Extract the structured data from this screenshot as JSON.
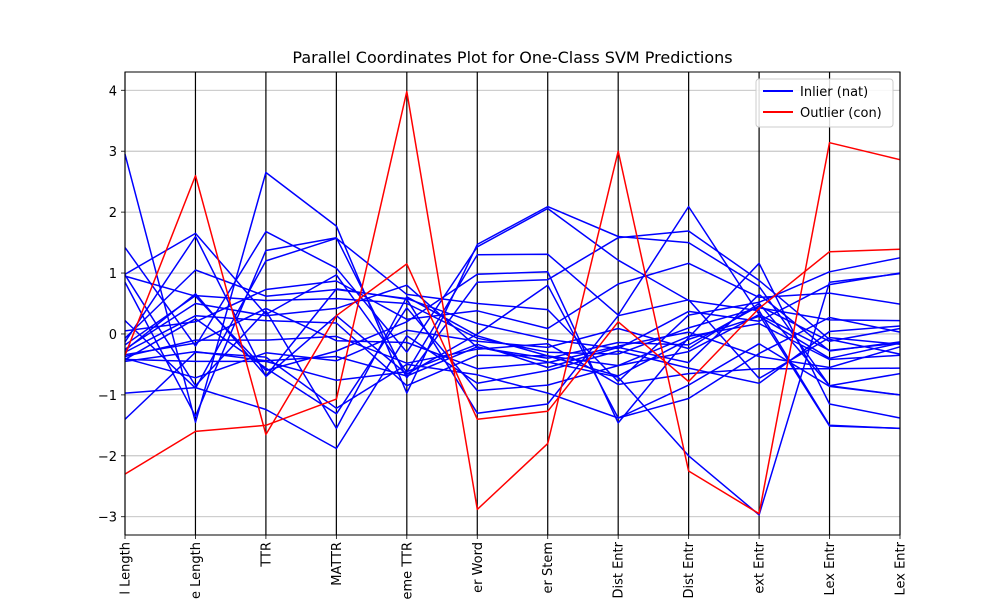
{
  "chart_data": {
    "type": "parallel_coordinates",
    "title": "Parallel Coordinates Plot for One-Class SVM Predictions",
    "axes": [
      "l Length",
      "e Length",
      "TTR",
      "MATTR",
      "eme TTR",
      "er Word",
      "er Stem",
      "Dist Entr",
      "Dist Entr",
      "ext Entr",
      "Lex Entr",
      "Lex Entr"
    ],
    "yticks": [
      "4",
      "3",
      "2",
      "1",
      "0",
      "−1",
      "−2",
      "−3"
    ],
    "ylim": [
      -3.3,
      4.3
    ],
    "grid": "horizontal",
    "legend_position": "top-right",
    "legend": [
      {
        "label": "Inlier (nat)",
        "color": "#0000ff"
      },
      {
        "label": "Outlier (con)",
        "color": "#ff0000"
      }
    ],
    "series": [
      {
        "class": "Outlier (con)",
        "color": "#ff0000",
        "values": [
          -0.35,
          2.6,
          -1.65,
          0.3,
          1.15,
          -1.4,
          -1.27,
          0.2,
          -0.78,
          0.42,
          1.35,
          1.39
        ]
      },
      {
        "class": "Outlier (con)",
        "color": "#ff0000",
        "values": [
          -2.3,
          -1.6,
          -1.5,
          -1.07,
          3.98,
          -2.88,
          -1.8,
          3.0,
          -2.25,
          -2.95,
          3.14,
          2.86
        ]
      },
      {
        "class": "Inlier (nat)",
        "color": "#0000ff",
        "values": [
          2.95,
          -1.45,
          2.65,
          1.77,
          -0.97,
          1.47,
          2.09,
          1.6,
          1.5,
          0.78,
          -0.85,
          -0.65
        ]
      },
      {
        "class": "Inlier (nat)",
        "color": "#0000ff",
        "values": [
          1.42,
          -0.2,
          1.68,
          1.08,
          -0.3,
          1.43,
          2.06,
          1.21,
          0.55,
          0.38,
          -1.5,
          -1.55
        ]
      },
      {
        "class": "Inlier (nat)",
        "color": "#0000ff",
        "values": [
          0.98,
          1.65,
          0.32,
          0.97,
          -0.63,
          1.3,
          1.31,
          0.31,
          2.09,
          0.32,
          -0.27,
          -0.15
        ]
      },
      {
        "class": "Inlier (nat)",
        "color": "#0000ff",
        "values": [
          0.95,
          0.62,
          -0.6,
          -0.28,
          0.2,
          0.98,
          1.02,
          -1.46,
          -0.06,
          1.16,
          -1.15,
          -1.38
        ]
      },
      {
        "class": "Inlier (nat)",
        "color": "#0000ff",
        "values": [
          0.85,
          -1.35,
          1.37,
          1.58,
          -0.72,
          0.85,
          0.89,
          1.58,
          1.69,
          0.88,
          -0.09,
          -0.33
        ]
      },
      {
        "class": "Inlier (nat)",
        "color": "#0000ff",
        "values": [
          0.22,
          -0.89,
          1.2,
          1.57,
          0.65,
          0.5,
          0.4,
          -0.78,
          0.31,
          0.52,
          1.02,
          1.25
        ]
      },
      {
        "class": "Inlier (nat)",
        "color": "#0000ff",
        "values": [
          0.05,
          0.2,
          0.73,
          0.87,
          0.24,
          0.38,
          0.09,
          0.82,
          1.16,
          0.6,
          0.67,
          0.49
        ]
      },
      {
        "class": "Inlier (nat)",
        "color": "#0000ff",
        "values": [
          -0.07,
          1.05,
          0.62,
          0.73,
          0.58,
          0.17,
          -0.09,
          -0.24,
          0.37,
          0.21,
          0.81,
          1.0
        ]
      },
      {
        "class": "Inlier (nat)",
        "color": "#0000ff",
        "values": [
          -0.18,
          0.63,
          0.55,
          0.58,
          0.5,
          -0.07,
          -0.3,
          -0.33,
          0.1,
          0.43,
          0.23,
          0.22
        ]
      },
      {
        "class": "Inlier (nat)",
        "color": "#0000ff",
        "values": [
          -0.25,
          0.5,
          0.3,
          0.42,
          0.8,
          -0.22,
          -0.4,
          -0.14,
          -0.18,
          0.46,
          -0.12,
          0.09
        ]
      },
      {
        "class": "Inlier (nat)",
        "color": "#0000ff",
        "values": [
          -0.3,
          0.3,
          0.22,
          0.18,
          -0.85,
          -0.35,
          -0.36,
          -0.69,
          -0.09,
          0.29,
          -0.4,
          -0.15
        ]
      },
      {
        "class": "Inlier (nat)",
        "color": "#0000ff",
        "values": [
          -0.34,
          -0.15,
          0.42,
          -0.11,
          -0.14,
          -0.57,
          -0.47,
          -0.2,
          0.03,
          -0.37,
          -0.55,
          -0.21
        ]
      },
      {
        "class": "Inlier (nat)",
        "color": "#0000ff",
        "values": [
          -0.4,
          -0.72,
          -0.31,
          -0.44,
          0.06,
          -0.12,
          -0.22,
          0.09,
          -0.24,
          0.5,
          -0.85,
          -1.0
        ]
      },
      {
        "class": "Inlier (nat)",
        "color": "#0000ff",
        "values": [
          -0.42,
          -0.45,
          -0.45,
          -0.76,
          -0.62,
          -0.17,
          -0.55,
          -0.22,
          -0.47,
          0.65,
          -0.28,
          -0.13
        ]
      },
      {
        "class": "Inlier (nat)",
        "color": "#0000ff",
        "values": [
          -0.37,
          -0.1,
          -0.1,
          -0.04,
          -0.48,
          -0.25,
          -0.16,
          -0.83,
          -0.65,
          -0.57,
          -0.57,
          -0.56
        ]
      },
      {
        "class": "Inlier (nat)",
        "color": "#0000ff",
        "values": [
          -0.42,
          0.25,
          -0.56,
          -1.31,
          0.43,
          -0.93,
          -0.84,
          -0.52,
          -0.04,
          0.17,
          -0.42,
          -0.35
        ]
      },
      {
        "class": "Inlier (nat)",
        "color": "#0000ff",
        "values": [
          -0.97,
          -0.88,
          -1.24,
          -1.88,
          -0.03,
          -0.81,
          -0.6,
          -0.28,
          -0.56,
          -0.81,
          0.04,
          0.13
        ]
      },
      {
        "class": "Inlier (nat)",
        "color": "#0000ff",
        "values": [
          -1.4,
          -0.3,
          -0.38,
          -1.22,
          -0.5,
          -0.67,
          -0.97,
          -1.38,
          -1.06,
          -0.32,
          0.27,
          0.03
        ]
      },
      {
        "class": "Inlier (nat)",
        "color": "#0000ff",
        "values": [
          -0.27,
          0.66,
          -0.69,
          0.74,
          0.57,
          -1.3,
          -1.15,
          0.3,
          0.56,
          -0.73,
          -0.06,
          -0.17
        ]
      },
      {
        "class": "Inlier (nat)",
        "color": "#0000ff",
        "values": [
          0.97,
          -0.85,
          0.38,
          -1.55,
          0.61,
          -0.03,
          -0.36,
          -0.52,
          -0.29,
          0.32,
          -1.51,
          -1.55
        ]
      },
      {
        "class": "Inlier (nat)",
        "color": "#0000ff",
        "values": [
          -0.45,
          -0.29,
          -0.44,
          -0.37,
          -0.69,
          -0.21,
          -0.46,
          -0.71,
          -2.0,
          -2.97,
          0.85,
          0.99
        ]
      },
      {
        "class": "Inlier (nat)",
        "color": "#0000ff",
        "values": [
          -0.13,
          1.6,
          -0.7,
          0.3,
          -0.66,
          0.0,
          0.8,
          -1.38,
          -0.84,
          -0.16,
          -0.86,
          -1.0
        ]
      }
    ]
  }
}
